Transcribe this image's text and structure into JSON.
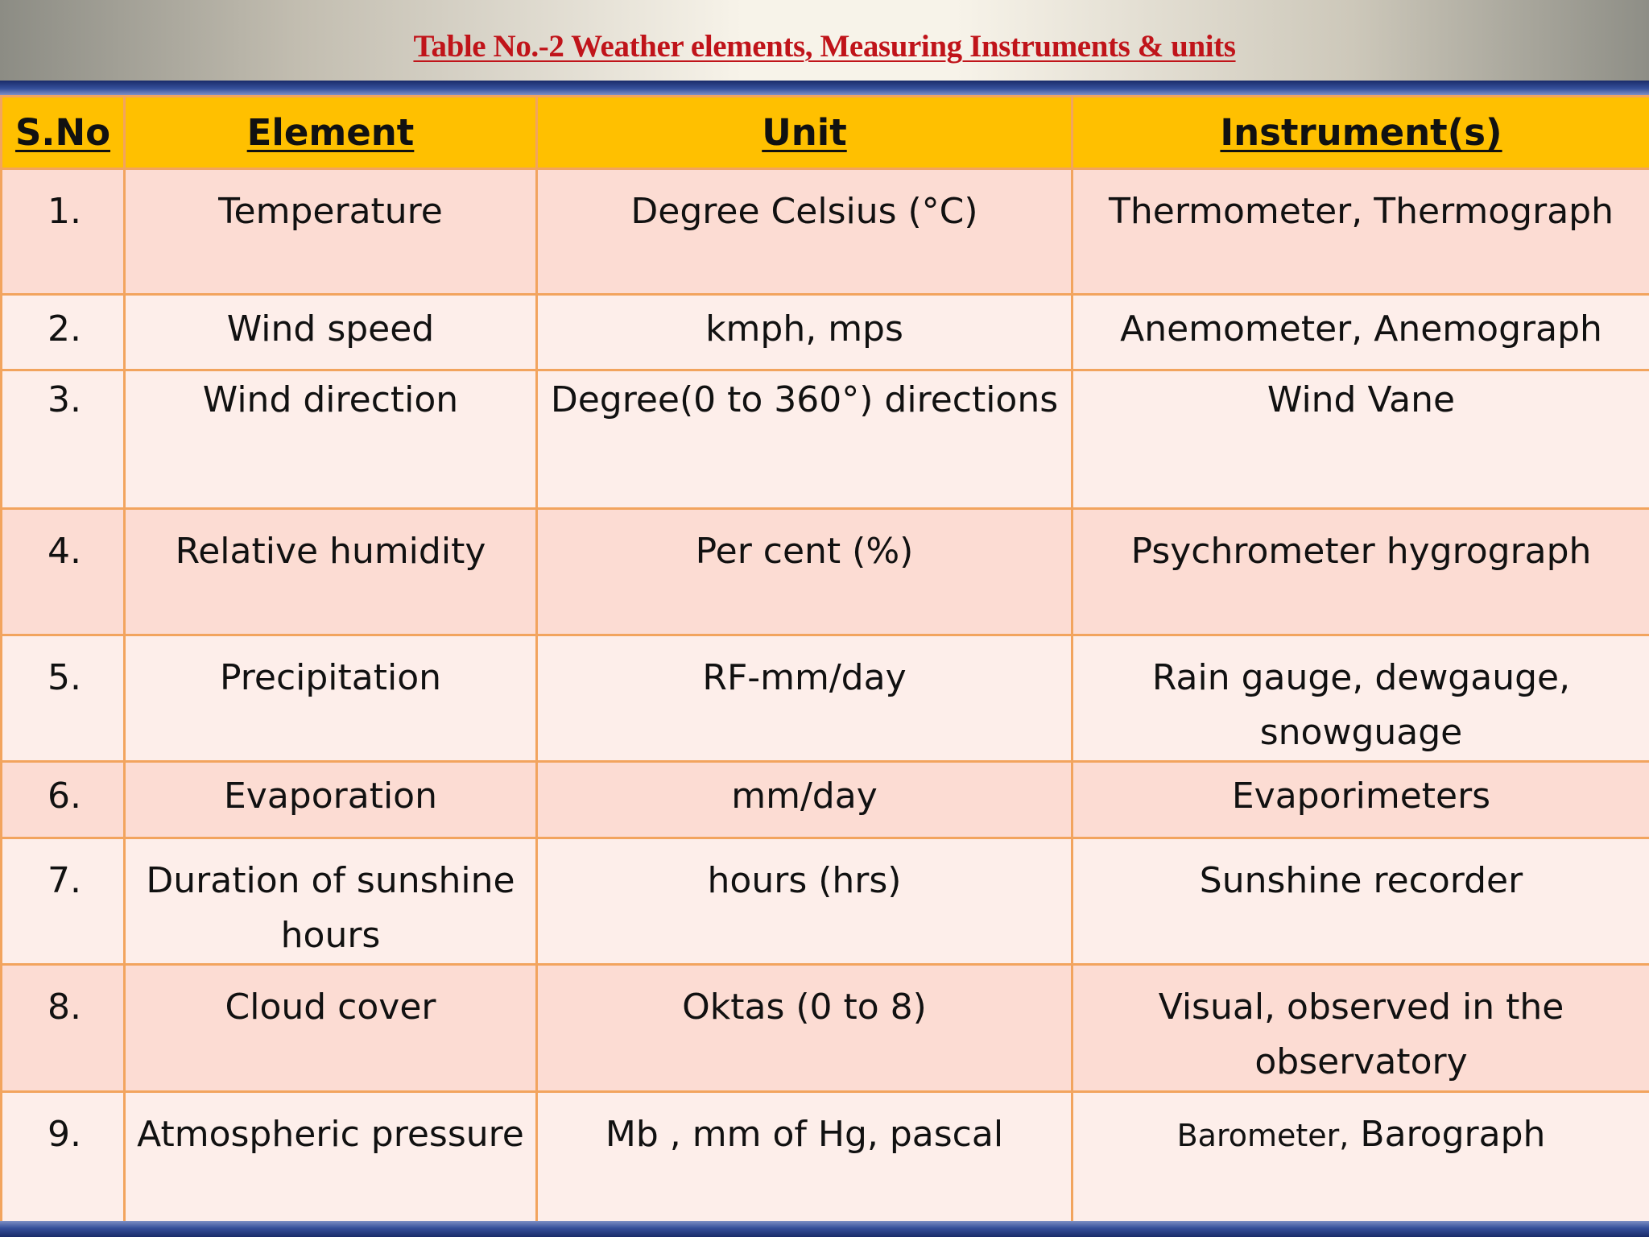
{
  "title": "Table No.-2 Weather elements, Measuring Instruments & units",
  "columns": [
    "S.No",
    "Element",
    "Unit",
    "Instrument(s)"
  ],
  "rows": [
    {
      "sno": "1.",
      "element": "Temperature",
      "unit": "Degree Celsius (°C)",
      "instrument": "Thermometer, Thermograph"
    },
    {
      "sno": "2.",
      "element": "Wind speed",
      "unit": "kmph, mps",
      "instrument": "Anemometer, Anemograph"
    },
    {
      "sno": "3.",
      "element": "Wind direction",
      "unit": "Degree(0 to 360°) directions",
      "instrument": "Wind Vane"
    },
    {
      "sno": "4.",
      "element": "Relative humidity",
      "unit": "Per cent (%)",
      "instrument": "Psychrometer hygrograph"
    },
    {
      "sno": "5.",
      "element": "Precipitation",
      "unit": "RF-mm/day",
      "instrument": "Rain gauge, dewgauge, snowguage"
    },
    {
      "sno": "6.",
      "element": "Evaporation",
      "unit": "mm/day",
      "instrument": "Evaporimeters"
    },
    {
      "sno": "7.",
      "element": "Duration of sunshine hours",
      "unit": "hours (hrs)",
      "instrument": "Sunshine recorder"
    },
    {
      "sno": "8.",
      "element": "Cloud cover",
      "unit": "Oktas (0 to 8)",
      "instrument": "Visual, observed in the observatory"
    },
    {
      "sno": "9.",
      "element": "Atmospheric pressure",
      "unit": "Mb , mm of Hg, pascal",
      "instrument_a": "Barometer,",
      "instrument_b": "Barograph"
    }
  ]
}
